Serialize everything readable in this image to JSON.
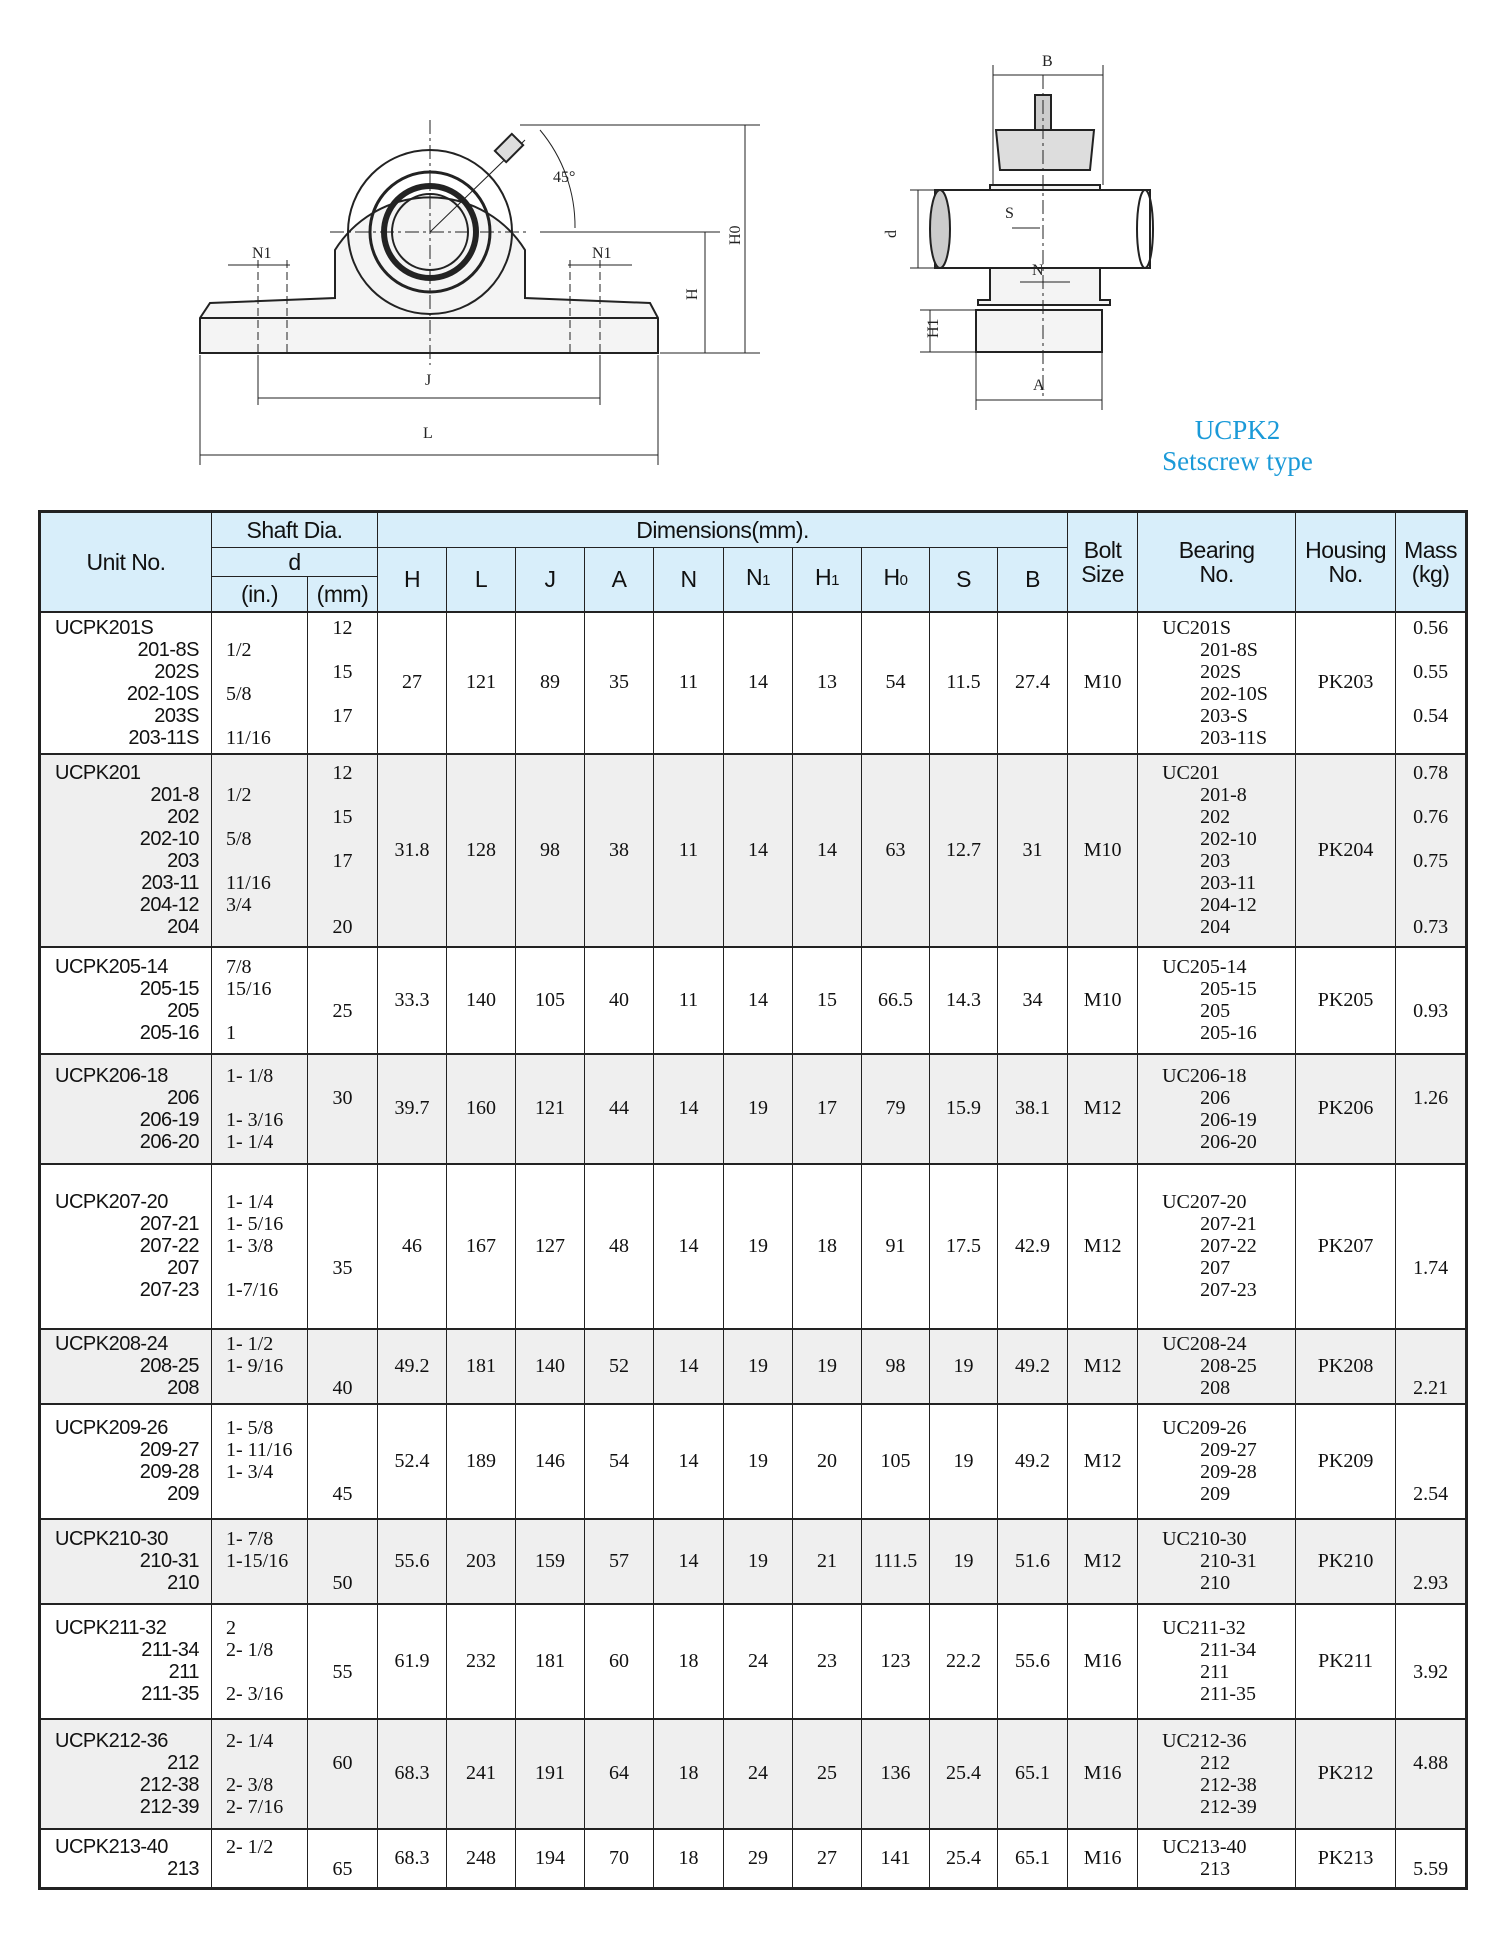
{
  "series_title": "UCPK2",
  "series_subtitle": "Setscrew type",
  "colors": {
    "accent_blue": "#1b9ad8",
    "header_bg": "#d8eefa",
    "row_shade": "#efefef"
  },
  "drawing_labels": {
    "front": {
      "n1_left": "N1",
      "n1_right": "N1",
      "h": "H",
      "h0": "H0",
      "j": "J",
      "l": "L",
      "angle": "45°"
    },
    "side": {
      "b": "B",
      "s": "S",
      "d": "d",
      "n": "N",
      "h1": "H1",
      "a": "A"
    }
  },
  "header": {
    "unit_no": "Unit No.",
    "shaft_dia": "Shaft Dia.",
    "d": "d",
    "inch": "(in.)",
    "mm": "(mm)",
    "dimensions": "Dimensions(mm).",
    "dim_cols": [
      {
        "main": "H",
        "sub": ""
      },
      {
        "main": "L",
        "sub": ""
      },
      {
        "main": "J",
        "sub": ""
      },
      {
        "main": "A",
        "sub": ""
      },
      {
        "main": "N",
        "sub": ""
      },
      {
        "main": "N",
        "sub": "1"
      },
      {
        "main": "H",
        "sub": "1"
      },
      {
        "main": "H",
        "sub": "0"
      },
      {
        "main": "S",
        "sub": ""
      },
      {
        "main": "B",
        "sub": ""
      }
    ],
    "bolt_1": "Bolt",
    "bolt_2": "Size",
    "bearing_1": "Bearing",
    "bearing_2": "No.",
    "housing_1": "Housing",
    "housing_2": "No.",
    "mass_1": "Mass",
    "mass_2": "(kg)"
  },
  "rows": [
    {
      "unit": [
        "UCPK201S",
        "201-8S",
        "202S",
        "202-10S",
        "203S",
        "203-11S"
      ],
      "inch": [
        "",
        "1/2",
        "",
        "5/8",
        "",
        "11/16"
      ],
      "mm": [
        "12",
        "",
        "15",
        "",
        "17",
        ""
      ],
      "dims": [
        "27",
        "121",
        "89",
        "35",
        "11",
        "14",
        "13",
        "54",
        "11.5",
        "27.4"
      ],
      "bolt": "M10",
      "bearing": [
        "UC201S",
        "201-8S",
        "202S",
        "202-10S",
        "203-S",
        "203-11S"
      ],
      "housing": "PK203",
      "mass": [
        "0.56",
        "",
        "0.55",
        "",
        "0.54",
        ""
      ]
    },
    {
      "unit": [
        "UCPK201",
        "201-8",
        "202",
        "202-10",
        "203",
        "203-11",
        "204-12",
        "204"
      ],
      "inch": [
        "",
        "1/2",
        "",
        "5/8",
        "",
        "11/16",
        "3/4",
        ""
      ],
      "mm": [
        "12",
        "",
        "15",
        "",
        "17",
        "",
        "",
        "20"
      ],
      "dims": [
        "31.8",
        "128",
        "98",
        "38",
        "11",
        "14",
        "14",
        "63",
        "12.7",
        "31"
      ],
      "bolt": "M10",
      "bearing": [
        "UC201",
        "201-8",
        "202",
        "202-10",
        "203",
        "203-11",
        "204-12",
        "204"
      ],
      "housing": "PK204",
      "mass": [
        "0.78",
        "",
        "0.76",
        "",
        "0.75",
        "",
        "",
        "0.73"
      ]
    },
    {
      "unit": [
        "UCPK205-14",
        "205-15",
        "205",
        "205-16"
      ],
      "inch": [
        "7/8",
        "15/16",
        "",
        "1"
      ],
      "mm": [
        "",
        "",
        "25",
        ""
      ],
      "dims": [
        "33.3",
        "140",
        "105",
        "40",
        "11",
        "14",
        "15",
        "66.5",
        "14.3",
        "34"
      ],
      "bolt": "M10",
      "bearing": [
        "UC205-14",
        "205-15",
        "205",
        "205-16"
      ],
      "housing": "PK205",
      "mass": [
        "",
        "",
        "0.93",
        ""
      ]
    },
    {
      "unit": [
        "UCPK206-18",
        "206",
        "206-19",
        "206-20"
      ],
      "inch": [
        "1- 1/8",
        "",
        "1- 3/16",
        "1- 1/4"
      ],
      "mm": [
        "",
        "30",
        "",
        ""
      ],
      "dims": [
        "39.7",
        "160",
        "121",
        "44",
        "14",
        "19",
        "17",
        "79",
        "15.9",
        "38.1"
      ],
      "bolt": "M12",
      "bearing": [
        "UC206-18",
        "206",
        "206-19",
        "206-20"
      ],
      "housing": "PK206",
      "mass": [
        "",
        "1.26",
        "",
        ""
      ]
    },
    {
      "unit": [
        "UCPK207-20",
        "207-21",
        "207-22",
        "207",
        "207-23"
      ],
      "inch": [
        "1- 1/4",
        "1- 5/16",
        "1- 3/8",
        "",
        "1-7/16"
      ],
      "mm": [
        "",
        "",
        "",
        "35",
        ""
      ],
      "dims": [
        "46",
        "167",
        "127",
        "48",
        "14",
        "19",
        "18",
        "91",
        "17.5",
        "42.9"
      ],
      "bolt": "M12",
      "bearing": [
        "UC207-20",
        "207-21",
        "207-22",
        "207",
        "207-23"
      ],
      "housing": "PK207",
      "mass": [
        "",
        "",
        "",
        "1.74",
        ""
      ]
    },
    {
      "unit": [
        "UCPK208-24",
        "208-25",
        "208"
      ],
      "inch": [
        "1- 1/2",
        "1- 9/16",
        ""
      ],
      "mm": [
        "",
        "",
        "40"
      ],
      "dims": [
        "49.2",
        "181",
        "140",
        "52",
        "14",
        "19",
        "19",
        "98",
        "19",
        "49.2"
      ],
      "bolt": "M12",
      "bearing": [
        "UC208-24",
        "208-25",
        "208"
      ],
      "housing": "PK208",
      "mass": [
        "",
        "",
        "2.21"
      ]
    },
    {
      "unit": [
        "UCPK209-26",
        "209-27",
        "209-28",
        "209"
      ],
      "inch": [
        "1- 5/8",
        "1- 11/16",
        "1- 3/4",
        ""
      ],
      "mm": [
        "",
        "",
        "",
        "45"
      ],
      "dims": [
        "52.4",
        "189",
        "146",
        "54",
        "14",
        "19",
        "20",
        "105",
        "19",
        "49.2"
      ],
      "bolt": "M12",
      "bearing": [
        "UC209-26",
        "209-27",
        "209-28",
        "209"
      ],
      "housing": "PK209",
      "mass": [
        "",
        "",
        "",
        "2.54"
      ]
    },
    {
      "unit": [
        "UCPK210-30",
        "210-31",
        "210"
      ],
      "inch": [
        "1- 7/8",
        "1-15/16",
        ""
      ],
      "mm": [
        "",
        "",
        "50"
      ],
      "dims": [
        "55.6",
        "203",
        "159",
        "57",
        "14",
        "19",
        "21",
        "111.5",
        "19",
        "51.6"
      ],
      "bolt": "M12",
      "bearing": [
        "UC210-30",
        "210-31",
        "210"
      ],
      "housing": "PK210",
      "mass": [
        "",
        "",
        "2.93"
      ]
    },
    {
      "unit": [
        "UCPK211-32",
        "211-34",
        "211",
        "211-35"
      ],
      "inch": [
        "2",
        "2- 1/8",
        "",
        "2- 3/16"
      ],
      "mm": [
        "",
        "",
        "55",
        ""
      ],
      "dims": [
        "61.9",
        "232",
        "181",
        "60",
        "18",
        "24",
        "23",
        "123",
        "22.2",
        "55.6"
      ],
      "bolt": "M16",
      "bearing": [
        "UC211-32",
        "211-34",
        "211",
        "211-35"
      ],
      "housing": "PK211",
      "mass": [
        "",
        "",
        "3.92",
        ""
      ]
    },
    {
      "unit": [
        "UCPK212-36",
        "212",
        "212-38",
        "212-39"
      ],
      "inch": [
        "2- 1/4",
        "",
        "2- 3/8",
        "2- 7/16"
      ],
      "mm": [
        "",
        "60",
        "",
        ""
      ],
      "dims": [
        "68.3",
        "241",
        "191",
        "64",
        "18",
        "24",
        "25",
        "136",
        "25.4",
        "65.1"
      ],
      "bolt": "M16",
      "bearing": [
        "UC212-36",
        "212",
        "212-38",
        "212-39"
      ],
      "housing": "PK212",
      "mass": [
        "",
        "4.88",
        "",
        ""
      ]
    },
    {
      "unit": [
        "UCPK213-40",
        "213"
      ],
      "inch": [
        "2- 1/2",
        ""
      ],
      "mm": [
        "",
        "65"
      ],
      "dims": [
        "68.3",
        "248",
        "194",
        "70",
        "18",
        "29",
        "27",
        "141",
        "25.4",
        "65.1"
      ],
      "bolt": "M16",
      "bearing": [
        "UC213-40",
        "213"
      ],
      "housing": "PK213",
      "mass": [
        "",
        "5.59"
      ]
    }
  ]
}
